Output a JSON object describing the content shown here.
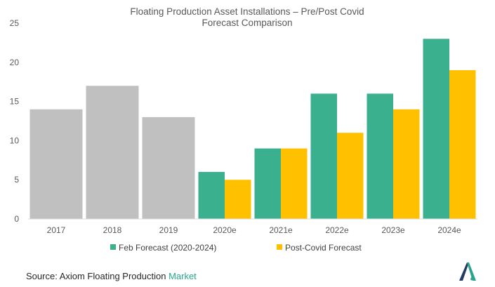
{
  "chart_data": {
    "type": "bar",
    "title_line1": "Floating Production Asset Installations – Pre/Post Covid",
    "title_line2": "Forecast Comparison",
    "categories": [
      "2017",
      "2018",
      "2019",
      "2020e",
      "2021e",
      "2022e",
      "2023e",
      "2024e"
    ],
    "historical": {
      "color": "#c0c0c0",
      "values": [
        14,
        17,
        13,
        null,
        null,
        null,
        null,
        null
      ]
    },
    "series": [
      {
        "name": "Feb Forecast (2020-2024)",
        "color": "#3ab08f",
        "values": [
          null,
          null,
          null,
          6,
          9,
          16,
          16,
          23
        ]
      },
      {
        "name": "Post-Covid Forecast",
        "color": "#ffc000",
        "values": [
          null,
          null,
          null,
          5,
          9,
          11,
          14,
          19
        ]
      }
    ],
    "yticks": [
      "0",
      "5",
      "10",
      "15",
      "20",
      "25"
    ],
    "ylim": [
      0,
      25
    ],
    "grid": false,
    "legend_position": "bottom"
  },
  "source": {
    "prefix": "Source: Axiom Floating Production ",
    "accent": "Market"
  },
  "logo_icon": "mordor-logo-icon"
}
